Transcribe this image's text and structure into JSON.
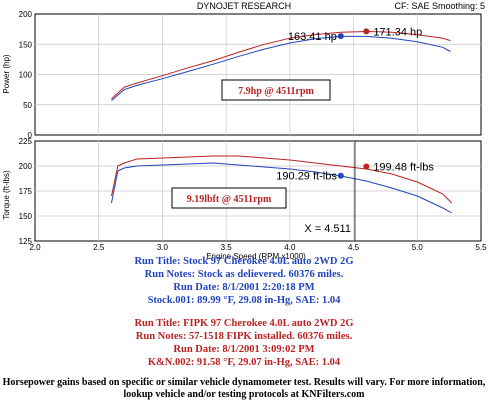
{
  "header": {
    "title": "DYNOJET RESEARCH",
    "settings": "CF: SAE  Smoothing: 5"
  },
  "chart_data": [
    {
      "type": "line",
      "ylabel": "Power (hp)",
      "ylim": [
        0,
        200
      ],
      "yticks": [
        "0",
        "50",
        "100",
        "150",
        "200"
      ],
      "xlim": [
        2.0,
        5.5
      ],
      "grid": true,
      "series": [
        {
          "color": "#2244bb",
          "x": [
            2.6,
            2.7,
            2.8,
            3.0,
            3.2,
            3.4,
            3.6,
            3.8,
            4.0,
            4.2,
            4.4,
            4.6,
            4.8,
            5.0,
            5.2,
            5.26
          ],
          "y": [
            57,
            75,
            82,
            93,
            105,
            117,
            130,
            142,
            152,
            159,
            163,
            163,
            160,
            154,
            145,
            138
          ]
        },
        {
          "color": "#bb2222",
          "x": [
            2.6,
            2.7,
            2.8,
            3.0,
            3.2,
            3.4,
            3.6,
            3.8,
            4.0,
            4.2,
            4.4,
            4.6,
            4.8,
            5.0,
            5.2,
            5.26
          ],
          "y": [
            60,
            79,
            86,
            98,
            111,
            123,
            137,
            150,
            160,
            166,
            170,
            171,
            170,
            166,
            160,
            156
          ]
        }
      ],
      "annotations": [
        {
          "text": "163.41 hp",
          "x": 4.4,
          "y": 163.41,
          "color": "#2244bb"
        },
        {
          "text": "171.34 hp",
          "x": 4.6,
          "y": 171.34,
          "color": "#bb2222"
        }
      ],
      "boxlabel": "7.9hp @ 4511rpm"
    },
    {
      "type": "line",
      "ylabel": "Torque (ft-lbs)",
      "xlabel": "Engine Speed (RPM x1000)",
      "ylim": [
        125,
        225
      ],
      "yticks": [
        "125",
        "150",
        "175",
        "200",
        "225"
      ],
      "xlim": [
        2.0,
        5.5
      ],
      "xticks": [
        "2.0",
        "2.5",
        "3.0",
        "3.5",
        "4.0",
        "4.5",
        "5.0",
        "5.5"
      ],
      "grid": true,
      "series": [
        {
          "color": "#2244bb",
          "x": [
            2.6,
            2.65,
            2.7,
            2.8,
            3.0,
            3.2,
            3.4,
            3.6,
            3.8,
            4.0,
            4.2,
            4.4,
            4.6,
            4.8,
            5.0,
            5.2,
            5.27
          ],
          "y": [
            163,
            195,
            198,
            200,
            201,
            202,
            203,
            201,
            199,
            197,
            194,
            190,
            185,
            178,
            170,
            158,
            153
          ]
        },
        {
          "color": "#bb2222",
          "x": [
            2.6,
            2.65,
            2.7,
            2.8,
            3.0,
            3.2,
            3.4,
            3.6,
            3.8,
            4.0,
            4.2,
            4.4,
            4.6,
            4.8,
            5.0,
            5.2,
            5.27
          ],
          "y": [
            170,
            200,
            203,
            207,
            208,
            209,
            210,
            210,
            208,
            206,
            203,
            200,
            197,
            192,
            184,
            172,
            163
          ]
        }
      ],
      "annotations": [
        {
          "text": "190.29 ft-lbs",
          "x": 4.4,
          "y": 190.29,
          "color": "#2244bb"
        },
        {
          "text": "199.48 ft-lbs",
          "x": 4.6,
          "y": 199.48,
          "color": "#bb2222"
        }
      ],
      "boxlabel": "9.19lbft @ 4511rpm",
      "cursor": {
        "label": "X = 4.511",
        "x": 4.511
      }
    }
  ],
  "run1": [
    "Run Title: Stock 97 Cherokee 4.0L auto 2WD 2G",
    "Run Notes: Stock as delievered. 60376 miles.",
    "Run Date: 8/1/2001 2:20:18 PM",
    "Stock.001: 89.99 °F, 29.08 in-Hg, SAE: 1.04"
  ],
  "run2": [
    "Run Title: FIPK 97 Cherokee 4.0L auto 2WD 2G",
    "Run Notes: 57-1518 FIPK installed. 60376 miles.",
    "Run Date: 8/1/2001 3:09:02 PM",
    "K&N.002: 91.58 °F, 29.07 in-Hg, SAE: 1.04"
  ],
  "footnote": "Horsepower gains based on specific or similar vehicle dynamometer test. Results will vary. For more information, lookup vehicle and/or testing protocols at KNFilters.com"
}
